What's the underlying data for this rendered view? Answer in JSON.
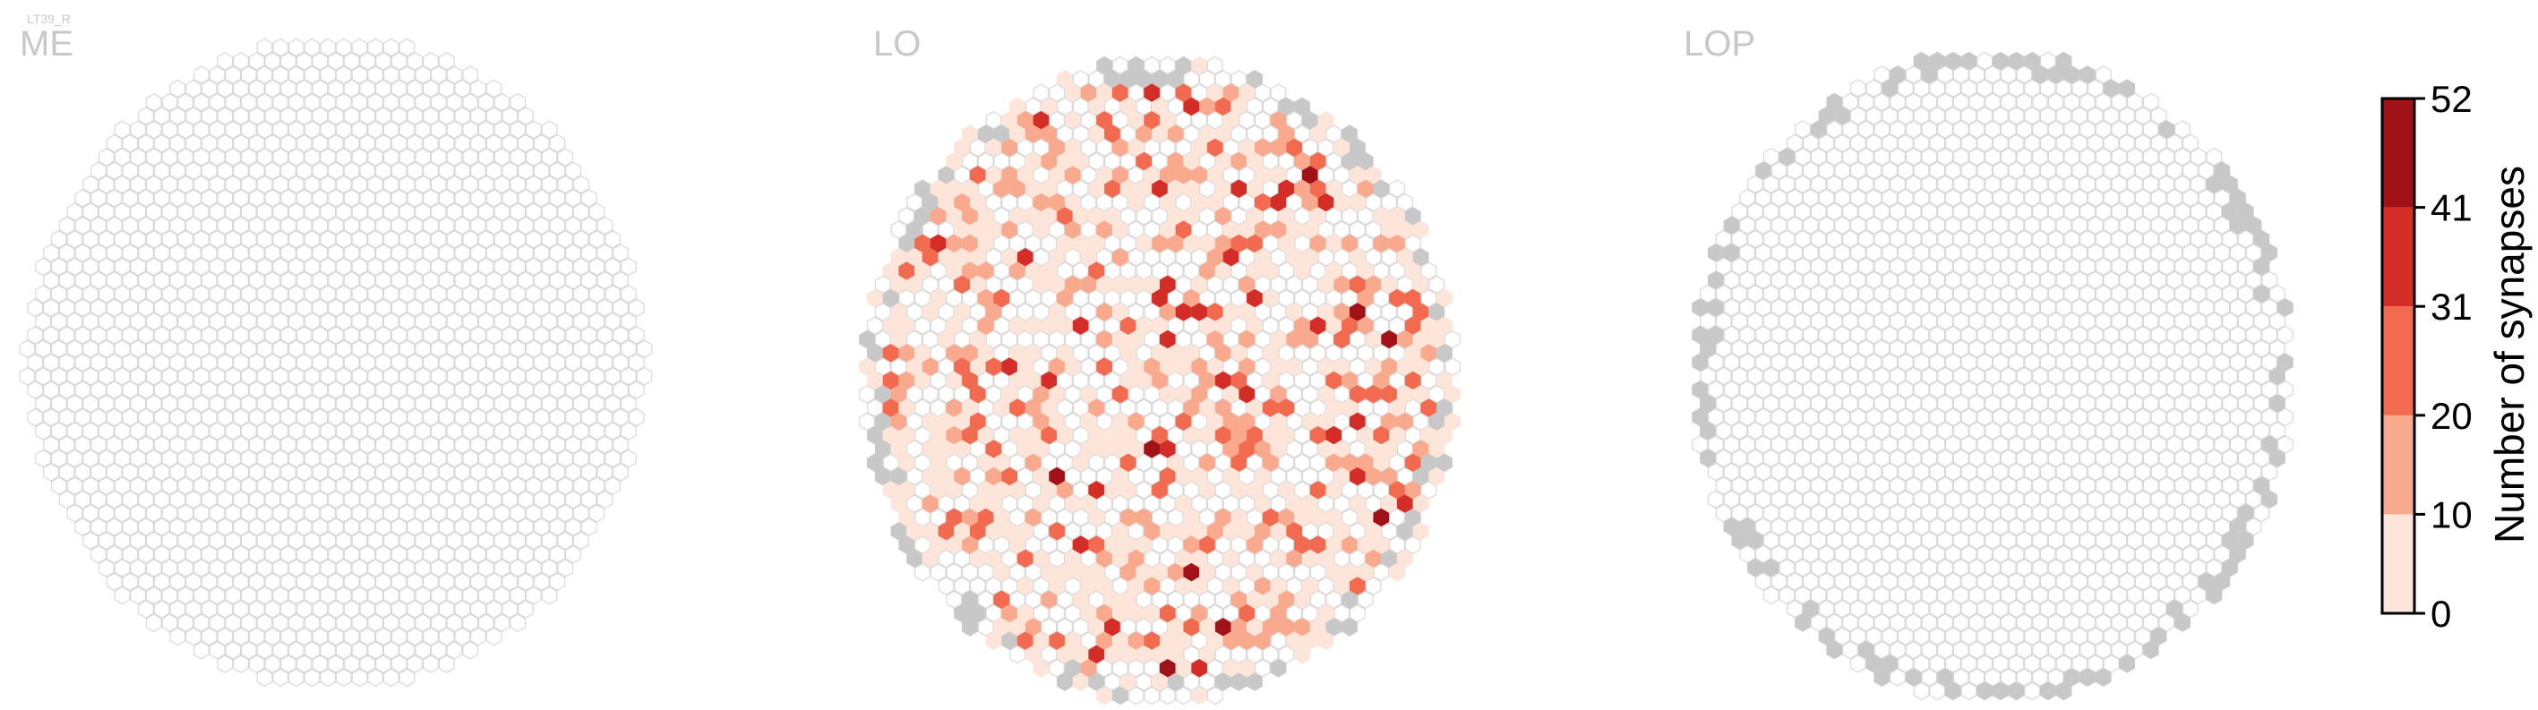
{
  "cell_type_label": "LT39_R",
  "chart_data": {
    "type": "heatmap",
    "title": "",
    "panels": [
      {
        "name": "ME",
        "status": "no synapses"
      },
      {
        "name": "LO",
        "status": "synapse counts per column (0-52)"
      },
      {
        "name": "LOP",
        "status": "no synapses"
      }
    ],
    "colorbar": {
      "label": "Number of synapses",
      "min": 0,
      "max": 52,
      "ticks": [
        0,
        10,
        20,
        31,
        41,
        52
      ],
      "bins": [
        {
          "from": 0,
          "to": 10,
          "color": "#fde5da"
        },
        {
          "from": 10,
          "to": 20,
          "color": "#f9aa8e"
        },
        {
          "from": 20,
          "to": 31,
          "color": "#f26a4f"
        },
        {
          "from": 31,
          "to": 41,
          "color": "#d42d27"
        },
        {
          "from": 41,
          "to": 52,
          "color": "#a11218"
        }
      ]
    },
    "legend_placement": "right"
  },
  "colors": {
    "empty_fill": "#ffffff",
    "empty_stroke": "#d9d9d9",
    "outside_column": "#c8c8c8",
    "title_gray": "#c8c8c8"
  }
}
